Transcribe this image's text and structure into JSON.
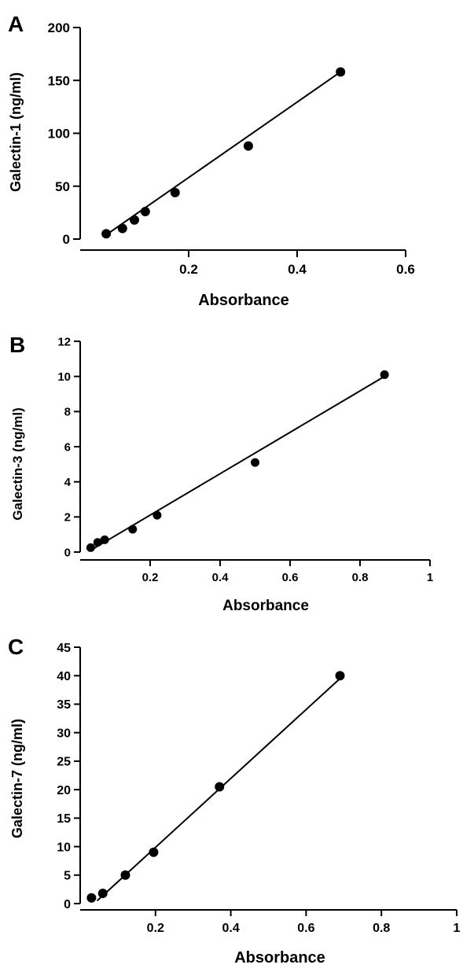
{
  "chart_data": [
    {
      "panel": "A",
      "type": "scatter",
      "xlabel": "Absorbance",
      "ylabel": "Galectin-1 (ng/ml)",
      "xlim": [
        0,
        0.6
      ],
      "ylim": [
        0,
        200
      ],
      "xticks": [
        0.2,
        0.4,
        0.6
      ],
      "xtick_labels": [
        "0.2",
        "0.4",
        "0.6"
      ],
      "yticks": [
        0,
        50,
        100,
        150,
        200
      ],
      "ytick_labels": [
        "0",
        "50",
        "100",
        "150",
        "200"
      ],
      "x": [
        0.048,
        0.078,
        0.1,
        0.12,
        0.175,
        0.31,
        0.48
      ],
      "y": [
        5,
        10,
        18,
        26,
        44,
        88,
        158
      ],
      "fit": {
        "x": [
          0.048,
          0.48
        ],
        "y": [
          4,
          158
        ]
      }
    },
    {
      "panel": "B",
      "type": "scatter",
      "xlabel": "Absorbance",
      "ylabel": "Galectin-3 (ng/ml)",
      "xlim": [
        0,
        1
      ],
      "ylim": [
        0,
        12
      ],
      "xticks": [
        0.2,
        0.4,
        0.6,
        0.8,
        1
      ],
      "xtick_labels": [
        "0.2",
        "0.4",
        "0.6",
        "0.8",
        "1"
      ],
      "yticks": [
        0,
        2,
        4,
        6,
        8,
        10,
        12
      ],
      "ytick_labels": [
        "0",
        "2",
        "4",
        "6",
        "8",
        "10",
        "12"
      ],
      "x": [
        0.03,
        0.05,
        0.07,
        0.15,
        0.22,
        0.5,
        0.87
      ],
      "y": [
        0.25,
        0.55,
        0.7,
        1.3,
        2.1,
        5.1,
        10.1
      ],
      "fit": {
        "x": [
          0.03,
          0.87
        ],
        "y": [
          0.1,
          10.0
        ]
      }
    },
    {
      "panel": "C",
      "type": "scatter",
      "xlabel": "Absorbance",
      "ylabel": "Galectin-7 (ng/ml)",
      "xlim": [
        0,
        1
      ],
      "ylim": [
        0,
        45
      ],
      "xticks": [
        0.2,
        0.4,
        0.6,
        0.8,
        1
      ],
      "xtick_labels": [
        "0.2",
        "0.4",
        "0.6",
        "0.8",
        "1"
      ],
      "yticks": [
        0,
        5,
        10,
        15,
        20,
        25,
        30,
        35,
        40,
        45
      ],
      "ytick_labels": [
        "0",
        "5",
        "10",
        "15",
        "20",
        "25",
        "30",
        "35",
        "40",
        "45"
      ],
      "x": [
        0.03,
        0.06,
        0.12,
        0.195,
        0.37,
        0.69
      ],
      "y": [
        1,
        1.8,
        5,
        9,
        20.5,
        40
      ],
      "fit": {
        "x": [
          0.045,
          0.69
        ],
        "y": [
          0.5,
          39.5
        ]
      }
    }
  ]
}
